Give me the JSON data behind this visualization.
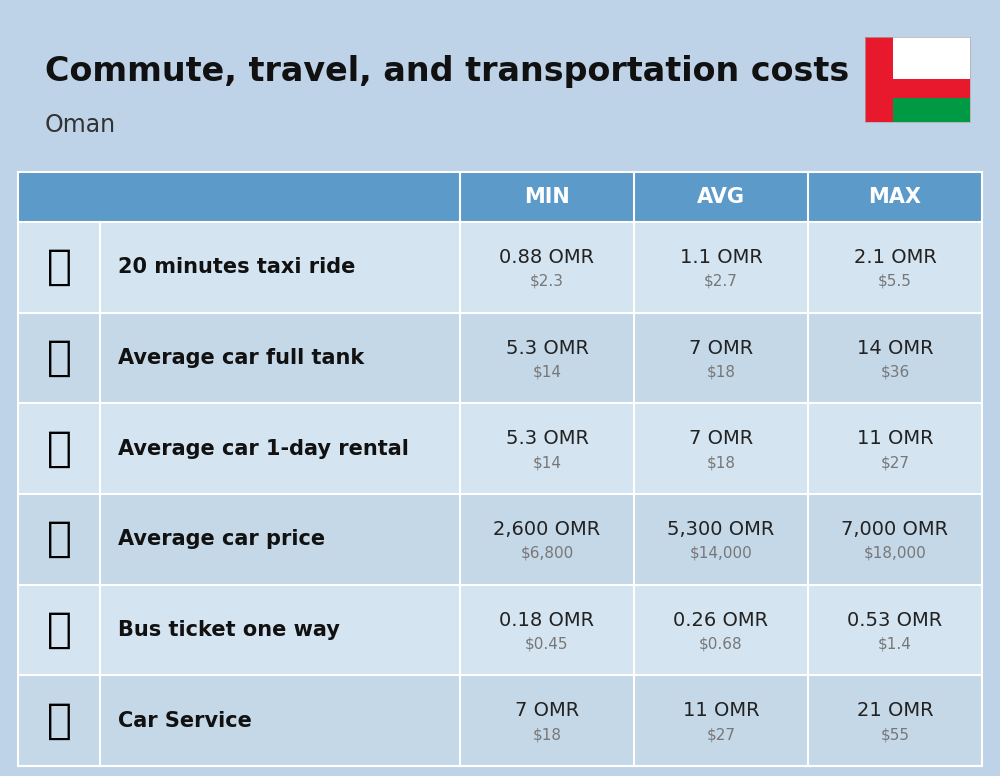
{
  "title": "Commute, travel, and transportation costs",
  "subtitle": "Oman",
  "background_color": "#bed3e8",
  "header_bg_color": "#5b9ac9",
  "header_text_color": "#ffffff",
  "row_bg_color_odd": "#d4e4f0",
  "row_bg_color_even": "#c5d8e8",
  "divider_color": "#ffffff",
  "col_headers": [
    "MIN",
    "AVG",
    "MAX"
  ],
  "rows": [
    {
      "label": "20 minutes taxi ride",
      "min_omr": "0.88 OMR",
      "min_usd": "$2.3",
      "avg_omr": "1.1 OMR",
      "avg_usd": "$2.7",
      "max_omr": "2.1 OMR",
      "max_usd": "$5.5"
    },
    {
      "label": "Average car full tank",
      "min_omr": "5.3 OMR",
      "min_usd": "$14",
      "avg_omr": "7 OMR",
      "avg_usd": "$18",
      "max_omr": "14 OMR",
      "max_usd": "$36"
    },
    {
      "label": "Average car 1-day rental",
      "min_omr": "5.3 OMR",
      "min_usd": "$14",
      "avg_omr": "7 OMR",
      "avg_usd": "$18",
      "max_omr": "11 OMR",
      "max_usd": "$27"
    },
    {
      "label": "Average car price",
      "min_omr": "2,600 OMR",
      "min_usd": "$6,800",
      "avg_omr": "5,300 OMR",
      "avg_usd": "$14,000",
      "max_omr": "7,000 OMR",
      "max_usd": "$18,000"
    },
    {
      "label": "Bus ticket one way",
      "min_omr": "0.18 OMR",
      "min_usd": "$0.45",
      "avg_omr": "0.26 OMR",
      "avg_usd": "$0.68",
      "max_omr": "0.53 OMR",
      "max_usd": "$1.4"
    },
    {
      "label": "Car Service",
      "min_omr": "7 OMR",
      "min_usd": "$18",
      "avg_omr": "11 OMR",
      "avg_usd": "$27",
      "max_omr": "21 OMR",
      "max_usd": "$55"
    }
  ],
  "title_fontsize": 24,
  "subtitle_fontsize": 17,
  "header_fontsize": 15,
  "cell_omr_fontsize": 14,
  "cell_usd_fontsize": 11,
  "label_fontsize": 15,
  "emoji_fontsize": 30,
  "flag_colors": {
    "red": "#e8192c",
    "white": "#ffffff",
    "green": "#009a44"
  }
}
